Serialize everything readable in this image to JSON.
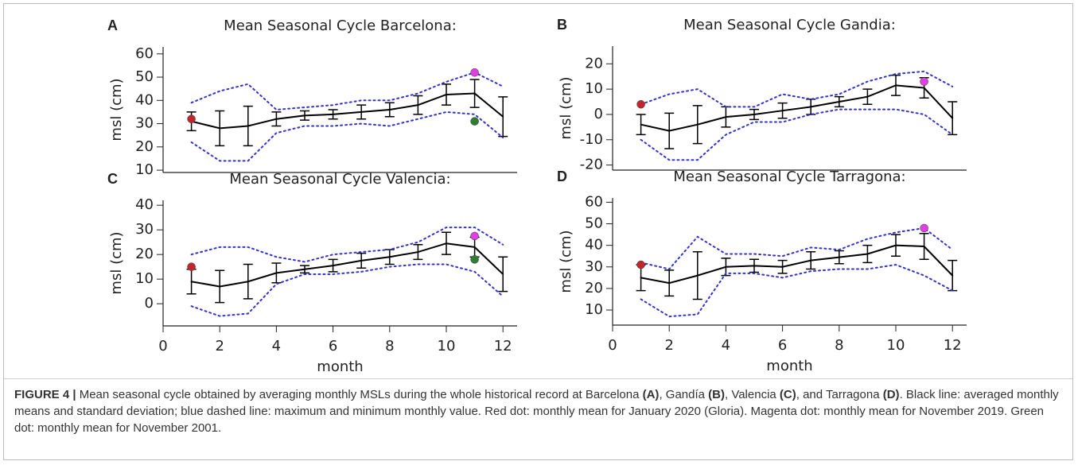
{
  "chart_data": [
    {
      "type": "line",
      "panel": "A",
      "title": "Mean Seasonal Cycle Barcelona:",
      "ylabel": "msl (cm)",
      "x": [
        1,
        2,
        3,
        4,
        5,
        6,
        7,
        8,
        9,
        10,
        11,
        12
      ],
      "xlim": [
        0,
        12.5
      ],
      "ylim": [
        9,
        63
      ],
      "yticks": [
        10,
        20,
        30,
        40,
        50,
        60
      ],
      "series": [
        {
          "color": "#000000",
          "values": [
            31,
            28,
            29,
            32,
            33.5,
            34,
            35,
            36,
            38,
            42.5,
            43,
            33
          ],
          "errors": [
            4,
            7.5,
            8.5,
            3,
            2,
            2,
            3,
            3,
            4,
            4.5,
            6,
            8.5
          ]
        },
        {
          "color": "#3333cc",
          "style": "dotted",
          "values": [
            39,
            44,
            47,
            36,
            37,
            38,
            40,
            40,
            43,
            48,
            52,
            46
          ]
        },
        {
          "color": "#3333cc",
          "style": "dotted",
          "values": [
            22,
            14,
            14,
            26,
            29,
            29,
            30,
            29,
            32,
            35,
            34,
            24
          ]
        }
      ],
      "points": [
        {
          "x": 1,
          "y": 32,
          "color": "#c0272d"
        },
        {
          "x": 11,
          "y": 52,
          "color": "#e040e0"
        },
        {
          "x": 11,
          "y": 31,
          "color": "#2e7d32"
        }
      ]
    },
    {
      "type": "line",
      "panel": "B",
      "title": "Mean Seasonal Cycle Gandia:",
      "ylabel": "msl (cm)",
      "x": [
        1,
        2,
        3,
        4,
        5,
        6,
        7,
        8,
        9,
        10,
        11,
        12
      ],
      "xlim": [
        0,
        12.5
      ],
      "ylim": [
        -22,
        27
      ],
      "yticks": [
        -20,
        -10,
        0,
        10,
        20
      ],
      "series": [
        {
          "color": "#000000",
          "values": [
            -4,
            -6.5,
            -4,
            -1,
            0,
            1.5,
            3,
            5,
            7,
            11.5,
            10.5,
            -1.5
          ],
          "errors": [
            4,
            7,
            7.5,
            4,
            2,
            3,
            3,
            2,
            3,
            4,
            4,
            6.5
          ]
        },
        {
          "color": "#3333cc",
          "style": "dotted",
          "values": [
            4,
            8,
            10,
            3,
            3,
            8,
            6,
            8,
            13,
            16,
            17,
            11
          ]
        },
        {
          "color": "#3333cc",
          "style": "dotted",
          "values": [
            -10,
            -18,
            -18,
            -8,
            -3,
            -3,
            0,
            2,
            2,
            2,
            0,
            -8
          ]
        }
      ],
      "points": [
        {
          "x": 1,
          "y": 4,
          "color": "#c0272d"
        },
        {
          "x": 11,
          "y": 13,
          "color": "#e040e0"
        }
      ]
    },
    {
      "type": "line",
      "panel": "C",
      "title": "Mean Seasonal Cycle Valencia:",
      "ylabel": "msl (cm)",
      "xlabel": "month",
      "x": [
        1,
        2,
        3,
        4,
        5,
        6,
        7,
        8,
        9,
        10,
        11,
        12
      ],
      "xlim": [
        0,
        12.5
      ],
      "xticks": [
        0,
        2,
        4,
        6,
        8,
        10,
        12
      ],
      "ylim": [
        -9,
        42
      ],
      "yticks": [
        0,
        10,
        20,
        30,
        40
      ],
      "series": [
        {
          "color": "#000000",
          "values": [
            9,
            7,
            9,
            12.5,
            14,
            15.5,
            17.5,
            19,
            21,
            24.5,
            23,
            12
          ],
          "errors": [
            5,
            6.5,
            7,
            4,
            1.5,
            2.5,
            3,
            3,
            3,
            4.5,
            4,
            7
          ]
        },
        {
          "color": "#3333cc",
          "style": "dotted",
          "values": [
            20,
            23,
            23,
            19,
            17,
            20,
            21,
            22,
            25,
            31,
            31,
            24
          ]
        },
        {
          "color": "#3333cc",
          "style": "dotted",
          "values": [
            -1,
            -5,
            -4,
            8,
            12,
            12,
            13,
            15,
            16,
            16,
            13,
            3
          ]
        }
      ],
      "points": [
        {
          "x": 1,
          "y": 15,
          "color": "#c0272d"
        },
        {
          "x": 11,
          "y": 27.5,
          "color": "#e040e0"
        },
        {
          "x": 11,
          "y": 18,
          "color": "#2e7d32"
        }
      ]
    },
    {
      "type": "line",
      "panel": "D",
      "title": "Mean Seasonal Cycle Tarragona:",
      "ylabel": "msl (cm)",
      "xlabel": "month",
      "x": [
        1,
        2,
        3,
        4,
        5,
        6,
        7,
        8,
        9,
        10,
        11,
        12
      ],
      "xlim": [
        0,
        12.5
      ],
      "xticks": [
        0,
        2,
        4,
        6,
        8,
        10,
        12
      ],
      "ylim": [
        3,
        62
      ],
      "yticks": [
        10,
        20,
        30,
        40,
        50,
        60
      ],
      "series": [
        {
          "color": "#000000",
          "values": [
            25,
            22.5,
            26,
            30,
            30.5,
            30,
            33,
            34.5,
            36,
            40,
            39.5,
            26
          ],
          "errors": [
            6,
            6,
            11,
            4,
            3,
            3,
            4,
            3,
            4,
            5,
            6,
            7
          ]
        },
        {
          "color": "#3333cc",
          "style": "dotted",
          "values": [
            32,
            29,
            44,
            36,
            36,
            35,
            39,
            38,
            43,
            46,
            48,
            38
          ]
        },
        {
          "color": "#3333cc",
          "style": "dotted",
          "values": [
            15,
            7,
            8,
            27,
            27,
            25,
            28,
            29,
            29,
            31,
            26,
            19
          ]
        }
      ],
      "points": [
        {
          "x": 1,
          "y": 31,
          "color": "#c0272d"
        },
        {
          "x": 11,
          "y": 48,
          "color": "#e040e0"
        }
      ]
    }
  ],
  "caption": [
    {
      "text": "FIGURE 4 |",
      "bold": true
    },
    {
      "text": " Mean seasonal cycle obtained by averaging monthly MSLs during the whole historical record at Barcelona ",
      "bold": false
    },
    {
      "text": "(A)",
      "bold": true
    },
    {
      "text": ", Gandía ",
      "bold": false
    },
    {
      "text": "(B)",
      "bold": true
    },
    {
      "text": ", Valencia ",
      "bold": false
    },
    {
      "text": "(C)",
      "bold": true
    },
    {
      "text": ", and Tarragona ",
      "bold": false
    },
    {
      "text": "(D)",
      "bold": true
    },
    {
      "text": ". Black line: averaged monthly means and standard deviation; blue dashed line: maximum and minimum monthly value. Red dot: monthly mean for January 2020 (Gloria). Magenta dot: monthly mean for November 2019. Green dot: monthly mean for November 2001.",
      "bold": false
    }
  ]
}
